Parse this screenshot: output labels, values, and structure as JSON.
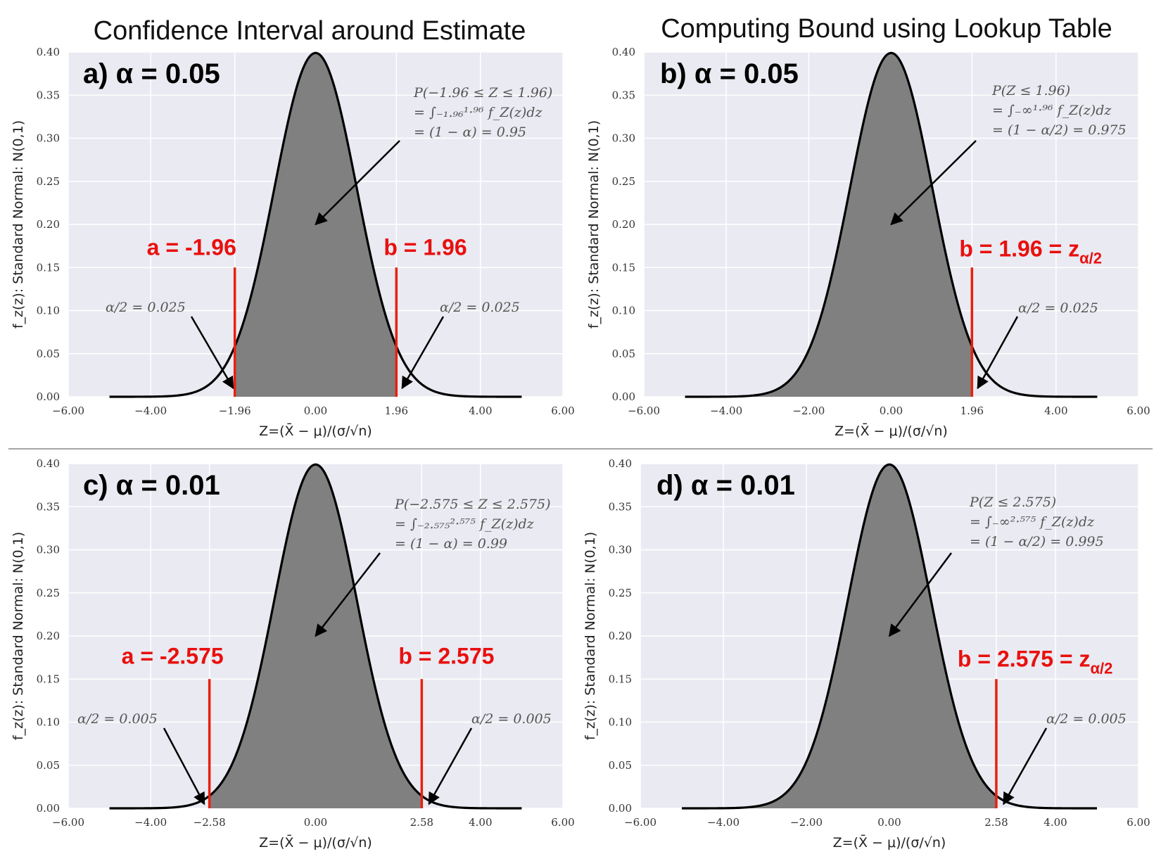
{
  "titles": {
    "left": "Confidence Interval around Estimate",
    "right": "Computing Bound using Lookup Table"
  },
  "colors": {
    "plot_bg": "#eaeaf2",
    "grid": "#ffffff",
    "fill": "#808080",
    "curve": "#000000",
    "bound": "#e8210e",
    "label_red": "#e8100e"
  },
  "chart_data": [
    {
      "id": "a",
      "type": "area",
      "panel_label": "a) α = 0.05",
      "ylabel": "f_z(z): Standard Normal: N(0,1)",
      "xlabel": "Z=(X̄ − μ)/(σ/√n)",
      "xlim": [
        -6,
        6
      ],
      "ylim": [
        0,
        0.4
      ],
      "x_ticks": [
        -6,
        -4,
        -1.96,
        0,
        1.96,
        4,
        6
      ],
      "x_tick_labels": [
        "−6.00",
        "−4.00",
        "−1.96",
        "0.00",
        "1.96",
        "4.00",
        "6.00"
      ],
      "y_ticks": [
        0,
        0.05,
        0.1,
        0.15,
        0.2,
        0.25,
        0.3,
        0.35,
        0.4
      ],
      "y_tick_labels": [
        "0.00",
        "0.05",
        "0.10",
        "0.15",
        "0.20",
        "0.25",
        "0.30",
        "0.35",
        "0.40"
      ],
      "grid": true,
      "curve": "standard normal pdf",
      "curve_range": [
        -5,
        5
      ],
      "shade_range": [
        -1.96,
        1.96
      ],
      "bounds": [
        {
          "x": -1.96,
          "label": "a = -1.96"
        },
        {
          "x": 1.96,
          "label": "b = 1.96"
        }
      ],
      "annotations": [
        {
          "lines": [
            "P(−1.96 ≤ Z ≤ 1.96)",
            "= ∫₋₁.₉₆¹·⁹⁶ f_Z(z)dz",
            "= (1 − α) = 0.95"
          ]
        },
        {
          "lines": [
            "α/2 = 0.025"
          ]
        },
        {
          "lines": [
            "α/2 = 0.025"
          ]
        }
      ]
    },
    {
      "id": "b",
      "type": "area",
      "panel_label": "b) α = 0.05",
      "ylabel": "f_z(z): Standard Normal: N(0,1)",
      "xlabel": "Z=(X̄ − μ)/(σ/√n)",
      "xlim": [
        -6,
        6
      ],
      "ylim": [
        0,
        0.4
      ],
      "x_ticks": [
        -6,
        -4,
        -2,
        0,
        1.96,
        4,
        6
      ],
      "x_tick_labels": [
        "−6.00",
        "−4.00",
        "−2.00",
        "0.00",
        "1.96",
        "4.00",
        "6.00"
      ],
      "y_ticks": [
        0,
        0.05,
        0.1,
        0.15,
        0.2,
        0.25,
        0.3,
        0.35,
        0.4
      ],
      "y_tick_labels": [
        "0.00",
        "0.05",
        "0.10",
        "0.15",
        "0.20",
        "0.25",
        "0.30",
        "0.35",
        "0.40"
      ],
      "grid": true,
      "curve": "standard normal pdf",
      "curve_range": [
        -5,
        5
      ],
      "shade_range": [
        -5,
        1.96
      ],
      "bounds": [
        {
          "x": 1.96,
          "label": "b = 1.96  = z",
          "subscript": "α/2"
        }
      ],
      "annotations": [
        {
          "lines": [
            "P(Z ≤ 1.96)",
            "= ∫₋∞¹·⁹⁶ f_Z(z)dz",
            "= (1 − α/2) = 0.975"
          ]
        },
        {
          "lines": [
            "α/2 = 0.025"
          ]
        }
      ]
    },
    {
      "id": "c",
      "type": "area",
      "panel_label": "c) α = 0.01",
      "ylabel": "f_z(z): Standard Normal: N(0,1)",
      "xlabel": "Z=(X̄ − μ)/(σ/√n)",
      "xlim": [
        -6,
        6
      ],
      "ylim": [
        0,
        0.4
      ],
      "x_ticks": [
        -6,
        -4,
        -2.575,
        0,
        2.575,
        4,
        6
      ],
      "x_tick_labels": [
        "−6.00",
        "−4.00",
        "−2.58",
        "0.00",
        "2.58",
        "4.00",
        "6.00"
      ],
      "y_ticks": [
        0,
        0.05,
        0.1,
        0.15,
        0.2,
        0.25,
        0.3,
        0.35,
        0.4
      ],
      "y_tick_labels": [
        "0.00",
        "0.05",
        "0.10",
        "0.15",
        "0.20",
        "0.25",
        "0.30",
        "0.35",
        "0.40"
      ],
      "grid": true,
      "curve": "standard normal pdf",
      "curve_range": [
        -5,
        5
      ],
      "shade_range": [
        -2.575,
        2.575
      ],
      "bounds": [
        {
          "x": -2.575,
          "label": "a = -2.575"
        },
        {
          "x": 2.575,
          "label": "b = 2.575"
        }
      ],
      "annotations": [
        {
          "lines": [
            "P(−2.575 ≤ Z ≤ 2.575)",
            "= ∫₋₂.₅₇₅²·⁵⁷⁵ f_Z(z)dz",
            "= (1 − α) = 0.99"
          ]
        },
        {
          "lines": [
            "α/2 = 0.005"
          ]
        },
        {
          "lines": [
            "α/2 = 0.005"
          ]
        }
      ]
    },
    {
      "id": "d",
      "type": "area",
      "panel_label": "d) α = 0.01",
      "ylabel": "f_z(z): Standard Normal: N(0,1)",
      "xlabel": "Z=(X̄ − μ)/(σ/√n)",
      "xlim": [
        -6,
        6
      ],
      "ylim": [
        0,
        0.4
      ],
      "x_ticks": [
        -6,
        -4,
        -2,
        0,
        2.575,
        4,
        6
      ],
      "x_tick_labels": [
        "−6.00",
        "−4.00",
        "−2.00",
        "0.00",
        "2.58",
        "4.00",
        "6.00"
      ],
      "y_ticks": [
        0,
        0.05,
        0.1,
        0.15,
        0.2,
        0.25,
        0.3,
        0.35,
        0.4
      ],
      "y_tick_labels": [
        "0.00",
        "0.05",
        "0.10",
        "0.15",
        "0.20",
        "0.25",
        "0.30",
        "0.35",
        "0.40"
      ],
      "grid": true,
      "curve": "standard normal pdf",
      "curve_range": [
        -5,
        5
      ],
      "shade_range": [
        -5,
        2.575
      ],
      "bounds": [
        {
          "x": 2.575,
          "label": "b = 2.575  = z",
          "subscript": "α/2"
        }
      ],
      "annotations": [
        {
          "lines": [
            "P(Z ≤ 2.575)",
            "= ∫₋∞²·⁵⁷⁵ f_Z(z)dz",
            "= (1 − α/2) = 0.995"
          ]
        },
        {
          "lines": [
            "α/2 = 0.005"
          ]
        }
      ]
    }
  ]
}
